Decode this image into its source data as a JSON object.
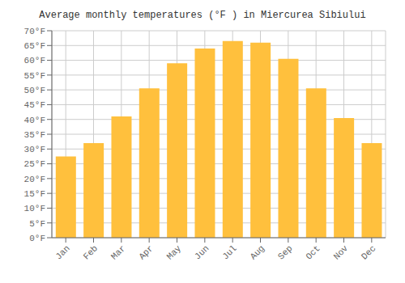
{
  "chart_data": {
    "type": "bar",
    "title": "Average monthly temperatures (°F ) in Miercurea Sibiului",
    "categories": [
      "Jan",
      "Feb",
      "Mar",
      "Apr",
      "May",
      "Jun",
      "Jul",
      "Aug",
      "Sep",
      "Oct",
      "Nov",
      "Dec"
    ],
    "values": [
      27.5,
      32.0,
      41.0,
      50.5,
      59.0,
      64.0,
      66.5,
      66.0,
      60.5,
      50.5,
      40.5,
      32.0
    ],
    "color": "#FFC03D",
    "ylim": [
      0,
      70
    ],
    "yticks": [
      {
        "value": 0,
        "label": "0°F"
      },
      {
        "value": 5,
        "label": "5°F"
      },
      {
        "value": 10,
        "label": "10°F"
      },
      {
        "value": 15,
        "label": "15°F"
      },
      {
        "value": 20,
        "label": "20°F"
      },
      {
        "value": 25,
        "label": "25°F"
      },
      {
        "value": 30,
        "label": "30°F"
      },
      {
        "value": 35,
        "label": "35°F"
      },
      {
        "value": 40,
        "label": "40°F"
      },
      {
        "value": 45,
        "label": "45°F"
      },
      {
        "value": 50,
        "label": "50°F"
      },
      {
        "value": 55,
        "label": "55°F"
      },
      {
        "value": 60,
        "label": "60°F"
      },
      {
        "value": 65,
        "label": "65°F"
      },
      {
        "value": 70,
        "label": "70°F"
      }
    ],
    "grid": true
  }
}
